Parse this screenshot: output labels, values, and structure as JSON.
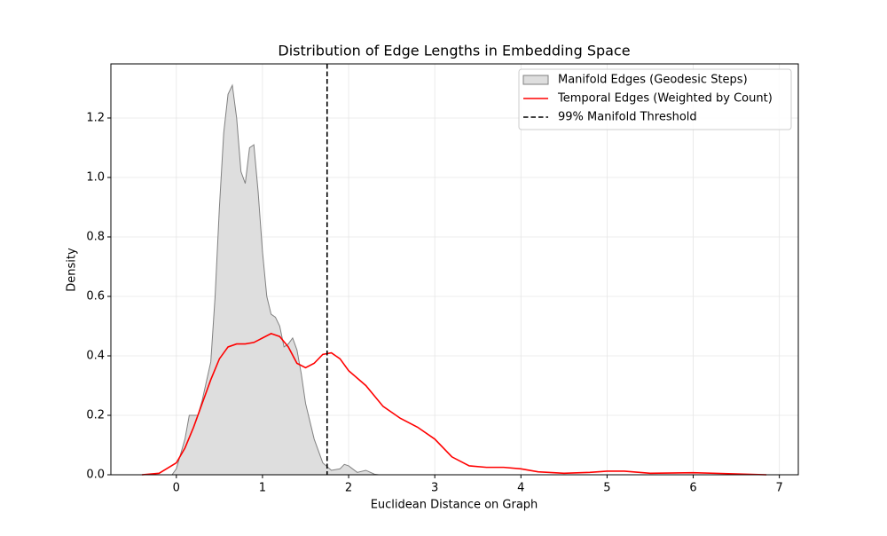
{
  "chart_data": {
    "type": "kde",
    "title": "Distribution of Edge Lengths in Embedding Space",
    "xlabel": "Euclidean Distance on Graph",
    "ylabel": "Density",
    "xlim": [
      -0.76,
      7.22
    ],
    "ylim": [
      0,
      1.382
    ],
    "xticks": [
      0,
      1,
      2,
      3,
      4,
      5,
      6,
      7
    ],
    "yticks": [
      {
        "value": 0,
        "label": "0.0"
      },
      0.2,
      0.4,
      0.6,
      0.8,
      {
        "value": 1,
        "label": "1.0"
      },
      1.2
    ],
    "grid": true,
    "legend": "upper right",
    "series": [
      {
        "name": "Manifold Edges (Geodesic Steps)",
        "color": "#808080",
        "fill": "#dedede",
        "kind": "area",
        "x": [
          -0.05,
          0,
          0.1,
          0.15,
          0.2,
          0.25,
          0.3,
          0.4,
          0.45,
          0.5,
          0.55,
          0.6,
          0.65,
          0.7,
          0.75,
          0.8,
          0.85,
          0.9,
          0.95,
          1.0,
          1.05,
          1.1,
          1.15,
          1.2,
          1.25,
          1.3,
          1.35,
          1.4,
          1.45,
          1.5,
          1.6,
          1.7,
          1.8,
          1.9,
          1.95,
          2.0,
          2.1,
          2.2,
          2.3,
          2.35
        ],
        "values": [
          0,
          0.02,
          0.12,
          0.2,
          0.2,
          0.2,
          0.25,
          0.38,
          0.6,
          0.9,
          1.15,
          1.28,
          1.31,
          1.2,
          1.02,
          0.98,
          1.1,
          1.11,
          0.95,
          0.75,
          0.6,
          0.54,
          0.53,
          0.5,
          0.43,
          0.44,
          0.46,
          0.42,
          0.34,
          0.24,
          0.12,
          0.04,
          0.015,
          0.02,
          0.035,
          0.03,
          0.008,
          0.015,
          0.002,
          0
        ]
      },
      {
        "name": "Temporal Edges (Weighted by Count)",
        "color": "#ff0000",
        "kind": "line",
        "x": [
          -0.4,
          -0.2,
          0,
          0.1,
          0.2,
          0.3,
          0.4,
          0.5,
          0.6,
          0.7,
          0.8,
          0.9,
          1.0,
          1.1,
          1.2,
          1.3,
          1.4,
          1.5,
          1.6,
          1.7,
          1.8,
          1.9,
          2.0,
          2.2,
          2.4,
          2.6,
          2.8,
          3.0,
          3.2,
          3.4,
          3.6,
          3.8,
          4.0,
          4.2,
          4.5,
          4.8,
          5.0,
          5.2,
          5.5,
          6.0,
          6.5,
          6.85
        ],
        "values": [
          0,
          0.005,
          0.04,
          0.09,
          0.16,
          0.24,
          0.32,
          0.39,
          0.43,
          0.44,
          0.44,
          0.445,
          0.46,
          0.475,
          0.465,
          0.43,
          0.375,
          0.36,
          0.375,
          0.405,
          0.41,
          0.39,
          0.35,
          0.3,
          0.23,
          0.19,
          0.16,
          0.12,
          0.06,
          0.03,
          0.025,
          0.025,
          0.02,
          0.01,
          0.005,
          0.008,
          0.012,
          0.012,
          0.005,
          0.007,
          0.003,
          0
        ]
      }
    ],
    "threshold": {
      "name": "99% Manifold Threshold",
      "x": 1.75,
      "color": "#000000"
    }
  }
}
